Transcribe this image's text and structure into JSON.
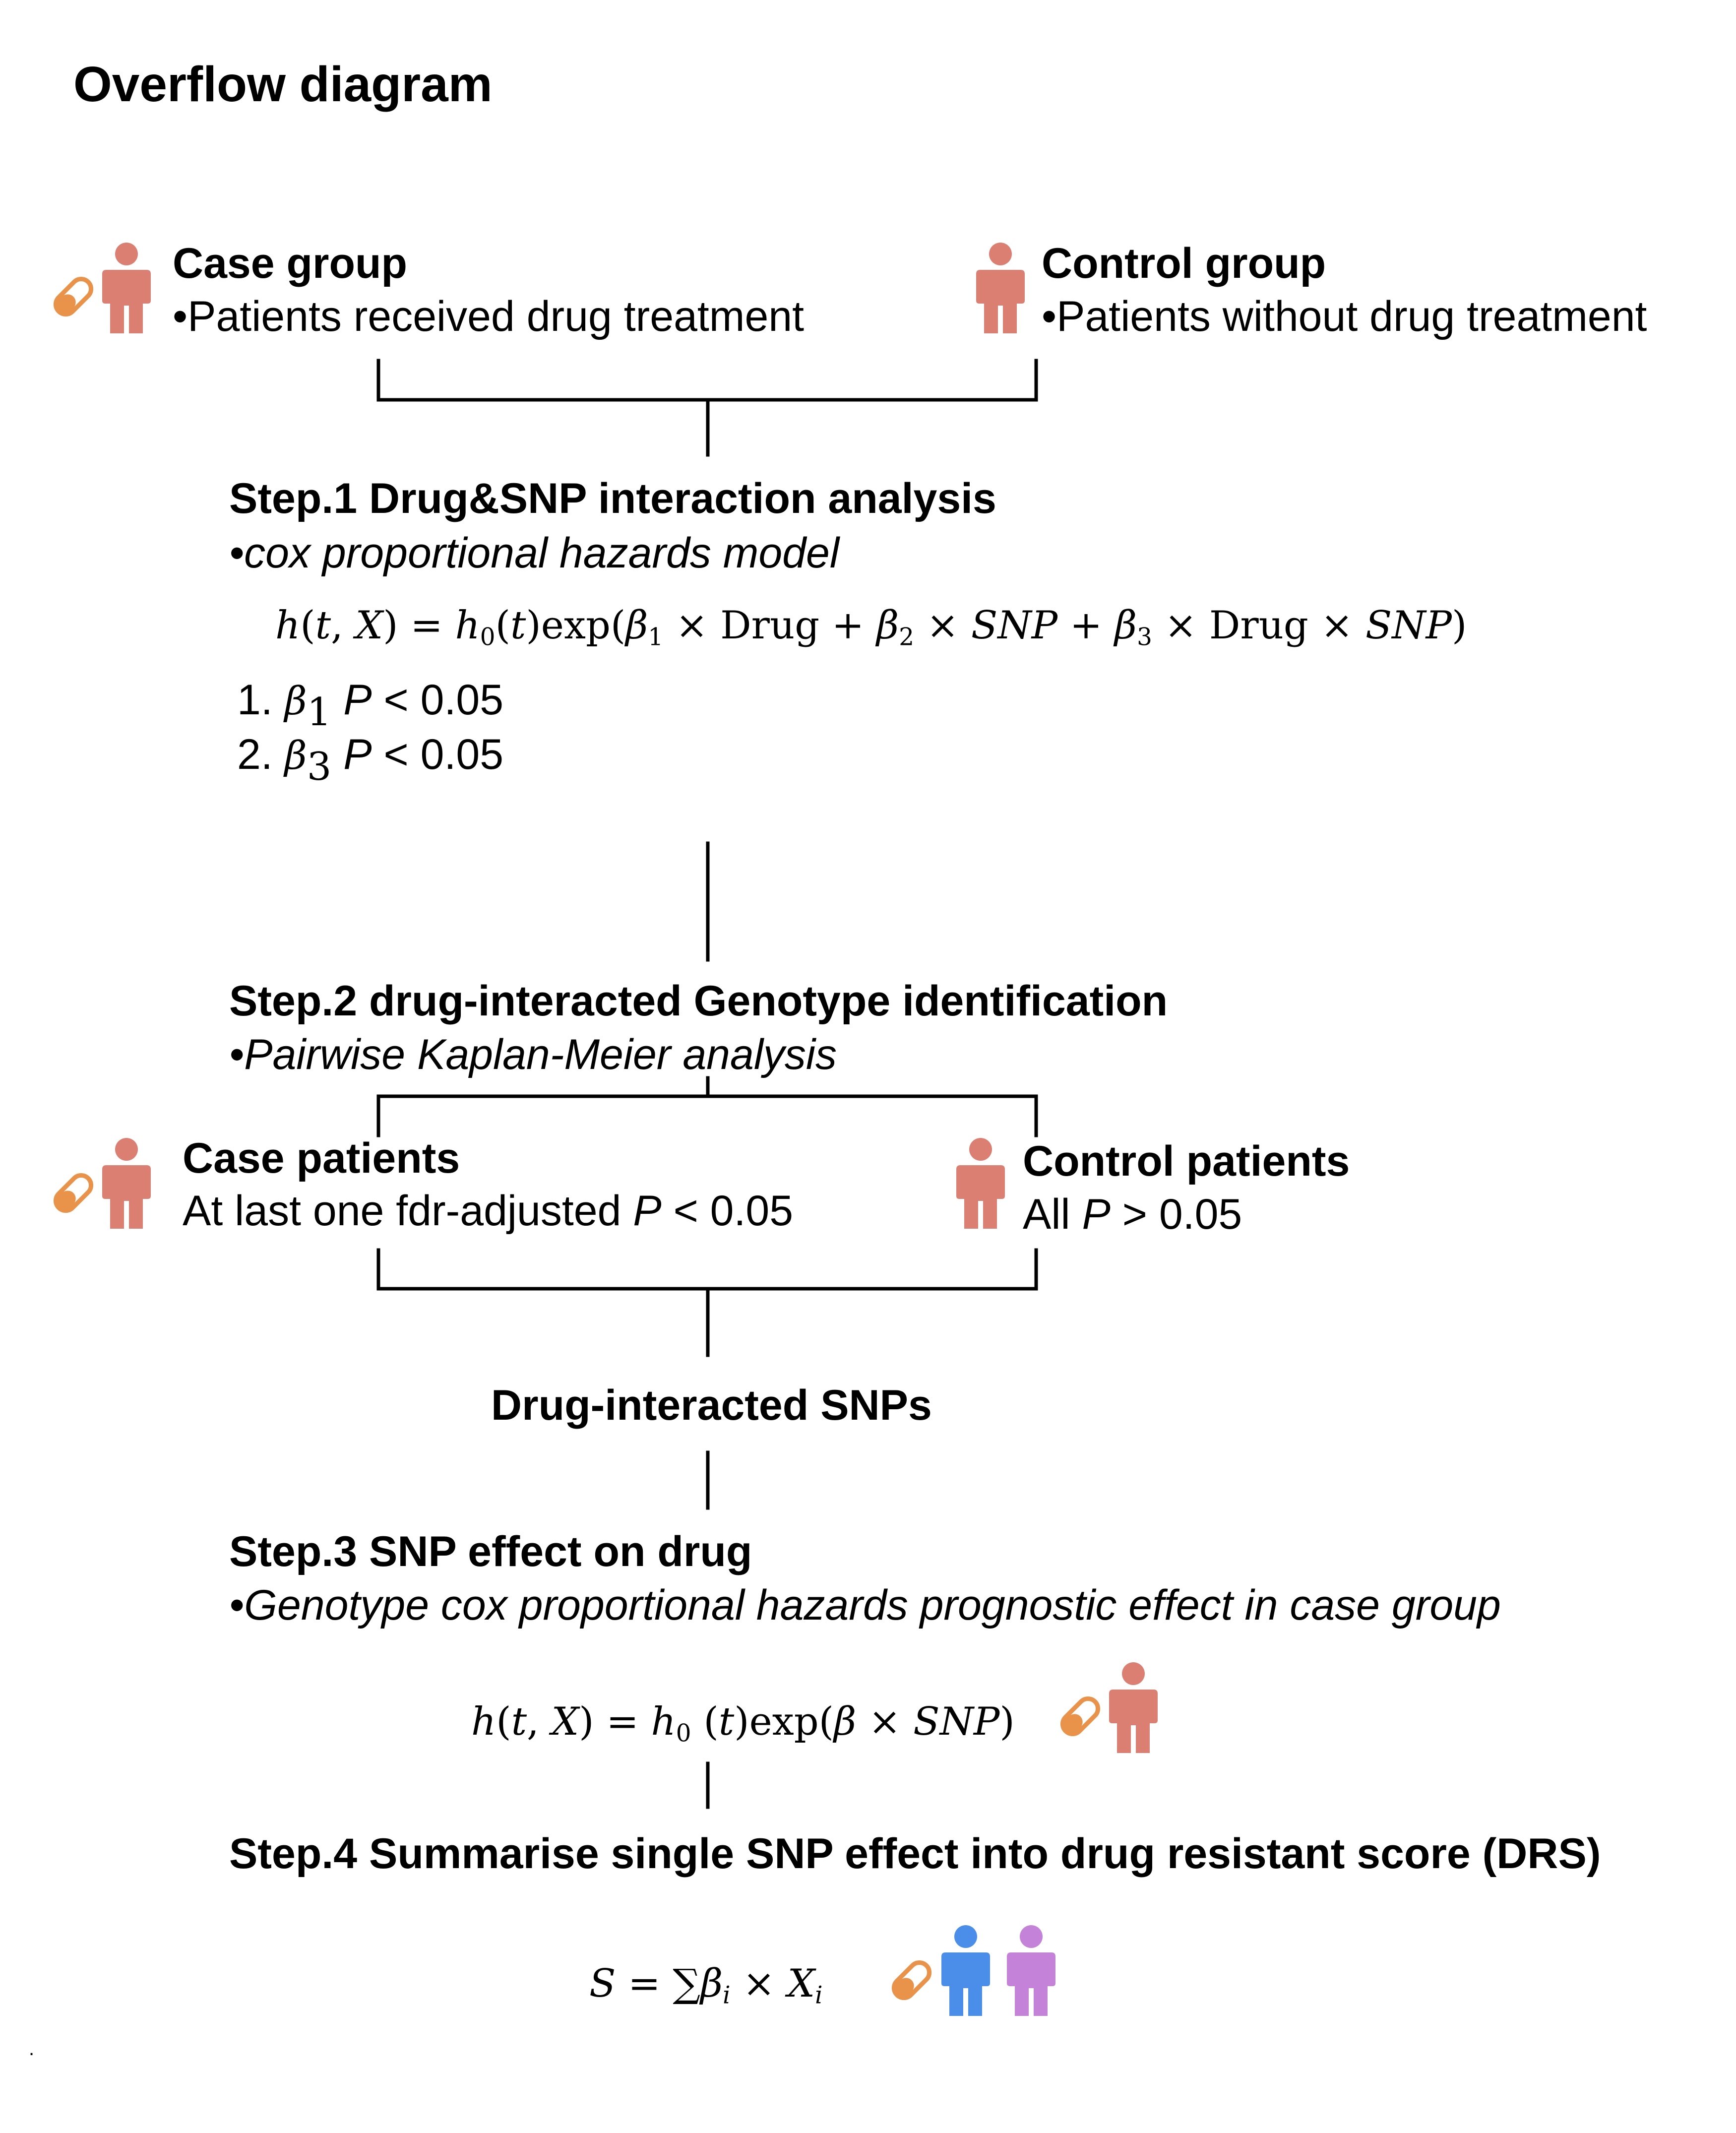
{
  "title": "Overflow diagram",
  "case_group": {
    "heading": "Case group",
    "detail": "•Patients received drug treatment"
  },
  "control_group": {
    "heading": "Control group",
    "detail": "•Patients without drug treatment"
  },
  "step1": {
    "heading": "Step.1 Drug&SNP interaction analysis",
    "method": "•cox proportional hazards model",
    "criteria": [
      {
        "num": "1.",
        "beta": "β",
        "sub": "1",
        "p": "P",
        "cond": " < 0.05"
      },
      {
        "num": "2.",
        "beta": "β",
        "sub": "3",
        "p": "P",
        "cond": " < 0.05"
      }
    ]
  },
  "step2": {
    "heading": "Step.2 drug-interacted Genotype identification",
    "method": "•Pairwise Kaplan-Meier analysis"
  },
  "case_patients": {
    "heading": "Case patients",
    "detail_prefix": "At last one fdr-adjusted ",
    "detail_p": "P",
    "detail_suffix": " < 0.05"
  },
  "control_patients": {
    "heading": "Control patients",
    "detail_prefix": "All ",
    "detail_p": "P",
    "detail_suffix": " > 0.05"
  },
  "drug_interacted_snps": "Drug-interacted SNPs",
  "step3": {
    "heading": "Step.3 SNP effect on drug",
    "method": "•Genotype cox proportional hazards prognostic effect in case group"
  },
  "step4": {
    "heading": "Step.4 Summarise single SNP effect into drug resistant score (DRS)"
  },
  "footnote": ".",
  "colors": {
    "person_default": "#DC7F73",
    "person_blue": "#4B8EEA",
    "person_purple": "#C482D9",
    "pill": "#E8924A",
    "line": "#000000"
  },
  "icons": [
    "person-icon",
    "pill-icon"
  ]
}
